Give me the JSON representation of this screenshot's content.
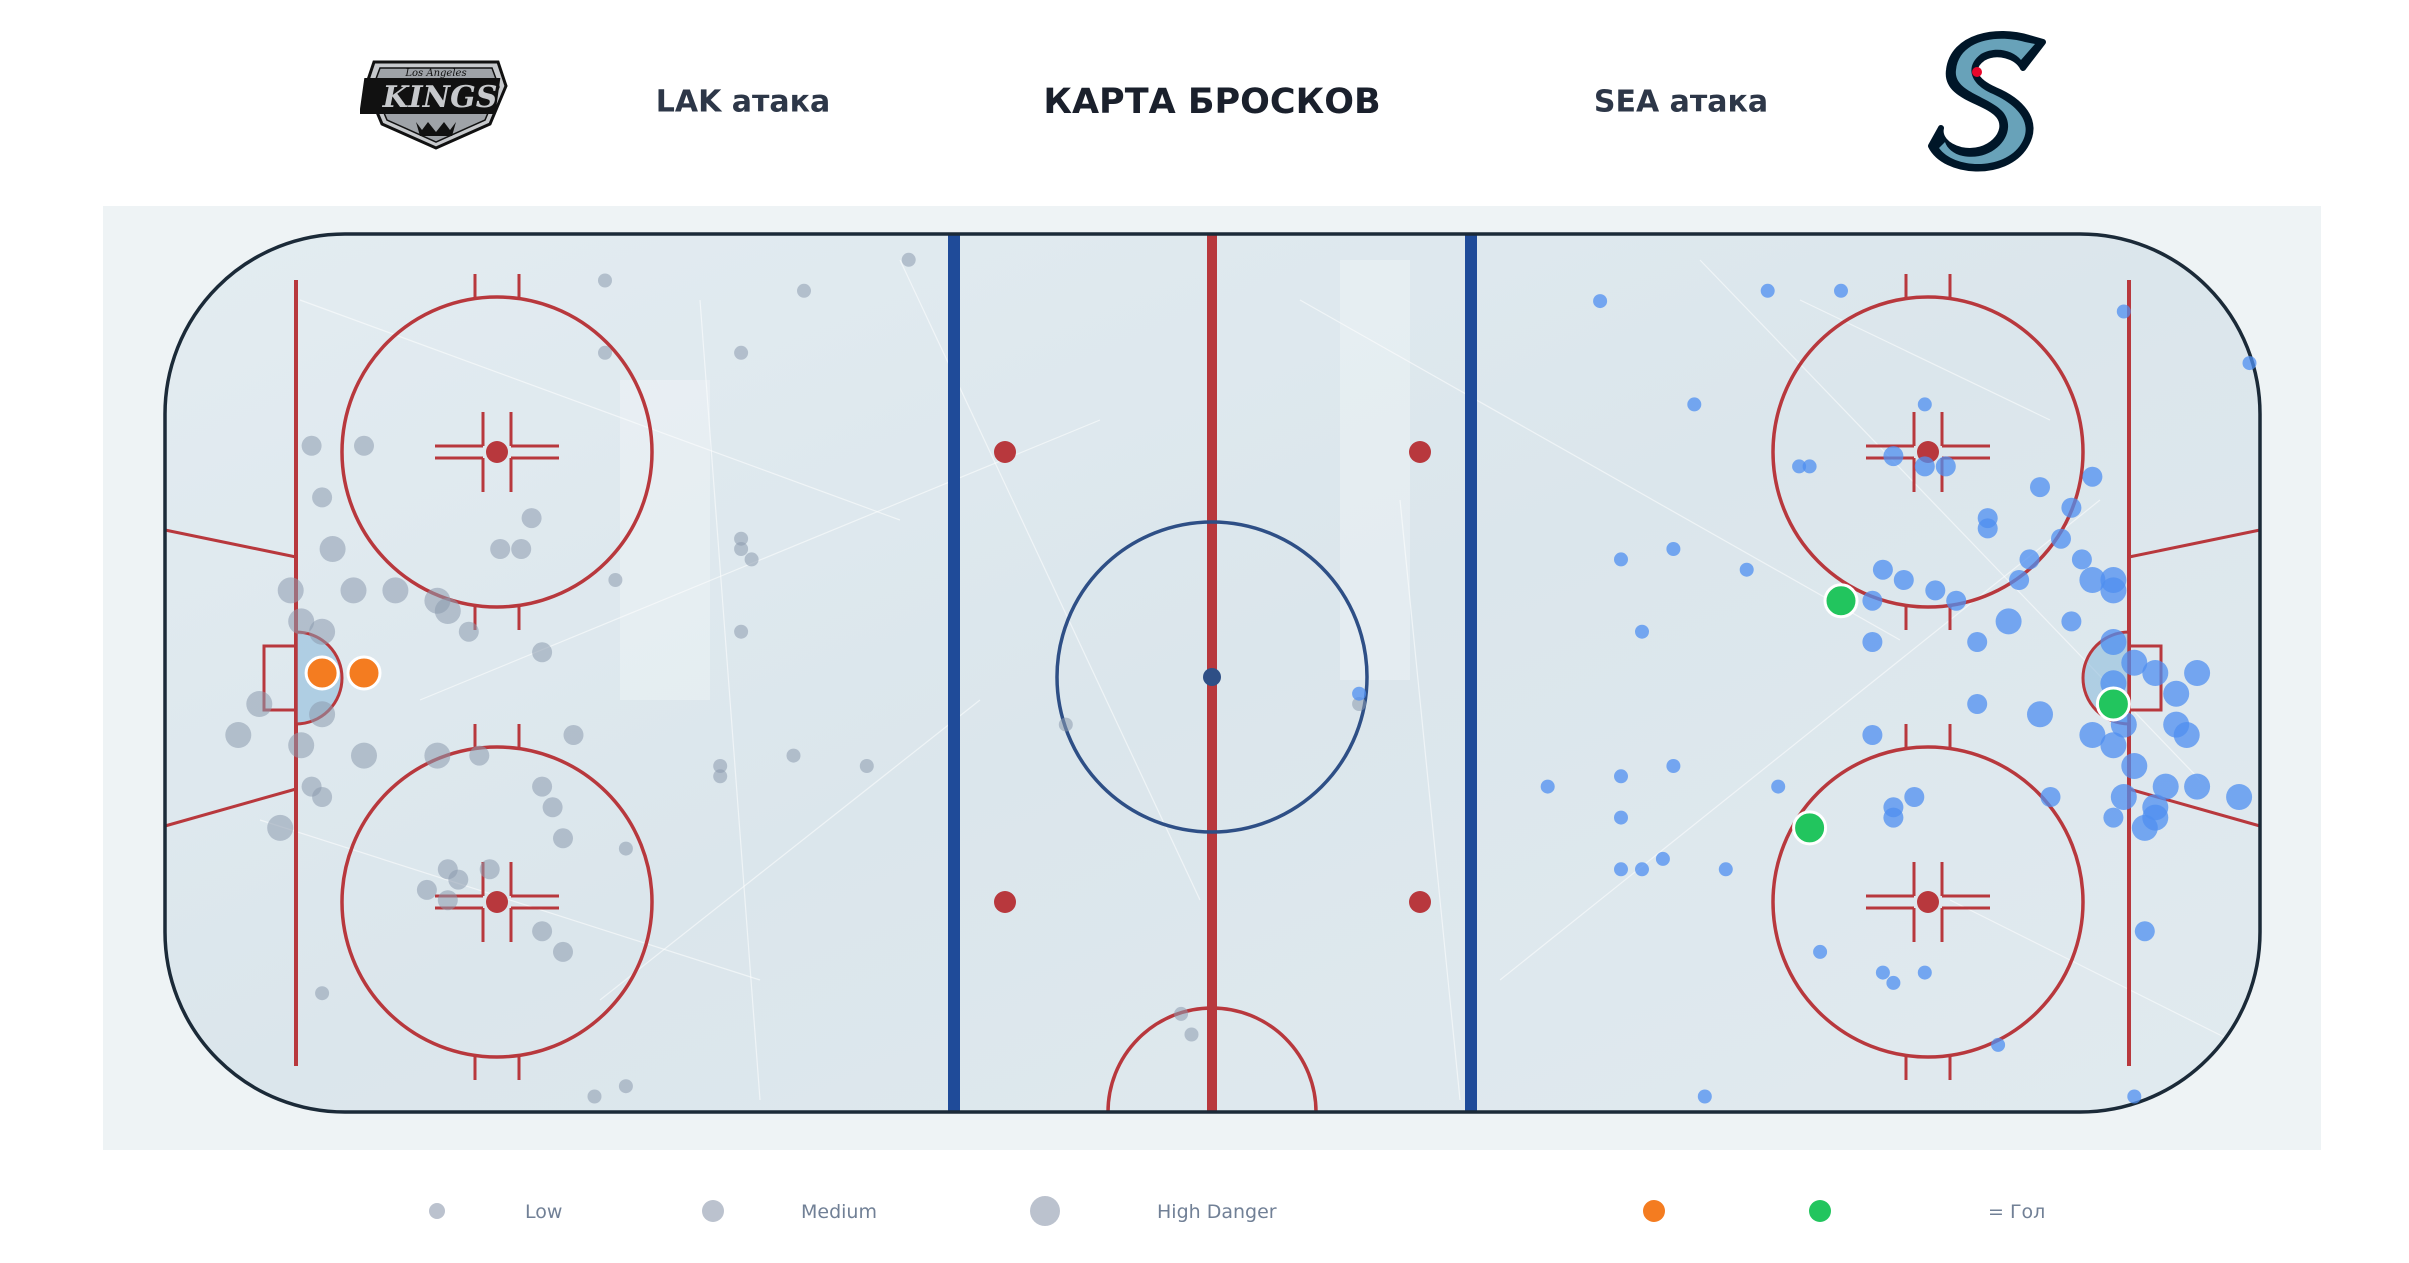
{
  "header": {
    "title": "КАРТА БРОСКОВ",
    "left_team_label": "LAK атака",
    "right_team_label": "SEA атака"
  },
  "logos": {
    "left": {
      "name": "la-kings-logo",
      "top_text": "Los Angeles",
      "main_text": "KINGS"
    },
    "right": {
      "name": "seattle-kraken-logo",
      "letter": "S"
    }
  },
  "legend": {
    "low": "Low",
    "medium": "Medium",
    "high": "High Danger",
    "goal": "= Гол"
  },
  "colors": {
    "lak_shot": "#8d9aae",
    "sea_shot": "#4f8ff0",
    "lak_goal": "#f47c20",
    "sea_goal": "#22c55e",
    "red_line": "#b8383d",
    "blue_line": "#1f4b99",
    "ice": "#dde8ee",
    "board": "#1b2a38"
  },
  "chart_data": {
    "type": "scatter",
    "title": "КАРТА БРОСКОВ",
    "xlabel": "",
    "ylabel": "",
    "xlim": [
      -100,
      100
    ],
    "ylim": [
      -42.5,
      42.5
    ],
    "grid": false,
    "legend_placement": "bottom",
    "danger_levels": [
      "Low",
      "Medium",
      "High Danger"
    ],
    "series": [
      {
        "team": "LAK",
        "kind": "shots",
        "points": [
          {
            "x": -58,
            "y": 38,
            "d": "low"
          },
          {
            "x": -39,
            "y": 37,
            "d": "low"
          },
          {
            "x": -29,
            "y": 40,
            "d": "low"
          },
          {
            "x": -58,
            "y": 31,
            "d": "low"
          },
          {
            "x": -45,
            "y": 31,
            "d": "low"
          },
          {
            "x": -86,
            "y": 22,
            "d": "medium"
          },
          {
            "x": -81,
            "y": 22,
            "d": "medium"
          },
          {
            "x": -85,
            "y": 17,
            "d": "medium"
          },
          {
            "x": -65,
            "y": 15,
            "d": "medium"
          },
          {
            "x": -84,
            "y": 12,
            "d": "high"
          },
          {
            "x": -68,
            "y": 12,
            "d": "medium"
          },
          {
            "x": -66,
            "y": 12,
            "d": "medium"
          },
          {
            "x": -57,
            "y": 9,
            "d": "low"
          },
          {
            "x": -45,
            "y": 12,
            "d": "low"
          },
          {
            "x": -45,
            "y": 13,
            "d": "low"
          },
          {
            "x": -44,
            "y": 11,
            "d": "low"
          },
          {
            "x": -88,
            "y": 8,
            "d": "high"
          },
          {
            "x": -82,
            "y": 8,
            "d": "high"
          },
          {
            "x": -78,
            "y": 8,
            "d": "high"
          },
          {
            "x": -74,
            "y": 7,
            "d": "high"
          },
          {
            "x": -73,
            "y": 6,
            "d": "high"
          },
          {
            "x": -87,
            "y": 5,
            "d": "high"
          },
          {
            "x": -85,
            "y": 4,
            "d": "high"
          },
          {
            "x": -71,
            "y": 4,
            "d": "medium"
          },
          {
            "x": -64,
            "y": 2,
            "d": "medium"
          },
          {
            "x": -45,
            "y": 4,
            "d": "low"
          },
          {
            "x": -91,
            "y": -3,
            "d": "high"
          },
          {
            "x": -85,
            "y": -4,
            "d": "high"
          },
          {
            "x": -93,
            "y": -6,
            "d": "high"
          },
          {
            "x": -87,
            "y": -7,
            "d": "high"
          },
          {
            "x": -81,
            "y": -8,
            "d": "high"
          },
          {
            "x": -74,
            "y": -8,
            "d": "high"
          },
          {
            "x": -70,
            "y": -8,
            "d": "medium"
          },
          {
            "x": -61,
            "y": -6,
            "d": "medium"
          },
          {
            "x": -47,
            "y": -9,
            "d": "low"
          },
          {
            "x": -40,
            "y": -8,
            "d": "low"
          },
          {
            "x": -33,
            "y": -9,
            "d": "low"
          },
          {
            "x": -86,
            "y": -11,
            "d": "medium"
          },
          {
            "x": -85,
            "y": -12,
            "d": "medium"
          },
          {
            "x": -64,
            "y": -11,
            "d": "medium"
          },
          {
            "x": -63,
            "y": -13,
            "d": "medium"
          },
          {
            "x": -47,
            "y": -10,
            "d": "low"
          },
          {
            "x": -89,
            "y": -15,
            "d": "high"
          },
          {
            "x": -62,
            "y": -16,
            "d": "medium"
          },
          {
            "x": -56,
            "y": -17,
            "d": "low"
          },
          {
            "x": -73,
            "y": -19,
            "d": "medium"
          },
          {
            "x": -75,
            "y": -21,
            "d": "medium"
          },
          {
            "x": -73,
            "y": -22,
            "d": "medium"
          },
          {
            "x": -72,
            "y": -20,
            "d": "medium"
          },
          {
            "x": -69,
            "y": -19,
            "d": "medium"
          },
          {
            "x": -64,
            "y": -25,
            "d": "medium"
          },
          {
            "x": -62,
            "y": -27,
            "d": "medium"
          },
          {
            "x": -56,
            "y": -40,
            "d": "low"
          },
          {
            "x": -59,
            "y": -41,
            "d": "low"
          },
          {
            "x": -85,
            "y": -31,
            "d": "low"
          },
          {
            "x": -3,
            "y": -33,
            "d": "low"
          },
          {
            "x": -2,
            "y": -35,
            "d": "low"
          },
          {
            "x": -14,
            "y": -5,
            "d": "low"
          },
          {
            "x": 14,
            "y": -3,
            "d": "low"
          }
        ]
      },
      {
        "team": "SEA",
        "kind": "shots",
        "points": [
          {
            "x": 37,
            "y": 36,
            "d": "low"
          },
          {
            "x": 53,
            "y": 37,
            "d": "low"
          },
          {
            "x": 60,
            "y": 37,
            "d": "low"
          },
          {
            "x": 87,
            "y": 35,
            "d": "low"
          },
          {
            "x": 99,
            "y": 30,
            "d": "low"
          },
          {
            "x": 46,
            "y": 26,
            "d": "low"
          },
          {
            "x": 68,
            "y": 26,
            "d": "low"
          },
          {
            "x": 56,
            "y": 20,
            "d": "low"
          },
          {
            "x": 57,
            "y": 20,
            "d": "low"
          },
          {
            "x": 65,
            "y": 21,
            "d": "medium"
          },
          {
            "x": 70,
            "y": 20,
            "d": "medium"
          },
          {
            "x": 68,
            "y": 20,
            "d": "medium"
          },
          {
            "x": 79,
            "y": 18,
            "d": "medium"
          },
          {
            "x": 82,
            "y": 16,
            "d": "medium"
          },
          {
            "x": 84,
            "y": 19,
            "d": "medium"
          },
          {
            "x": 81,
            "y": 13,
            "d": "medium"
          },
          {
            "x": 74,
            "y": 15,
            "d": "medium"
          },
          {
            "x": 74,
            "y": 14,
            "d": "medium"
          },
          {
            "x": 39,
            "y": 11,
            "d": "low"
          },
          {
            "x": 44,
            "y": 12,
            "d": "low"
          },
          {
            "x": 51,
            "y": 10,
            "d": "low"
          },
          {
            "x": 64,
            "y": 10,
            "d": "medium"
          },
          {
            "x": 66,
            "y": 9,
            "d": "medium"
          },
          {
            "x": 78,
            "y": 11,
            "d": "medium"
          },
          {
            "x": 83,
            "y": 11,
            "d": "medium"
          },
          {
            "x": 86,
            "y": 9,
            "d": "high"
          },
          {
            "x": 63,
            "y": 7,
            "d": "medium"
          },
          {
            "x": 71,
            "y": 7,
            "d": "medium"
          },
          {
            "x": 77,
            "y": 9,
            "d": "medium"
          },
          {
            "x": 84,
            "y": 9,
            "d": "high"
          },
          {
            "x": 86,
            "y": 8,
            "d": "high"
          },
          {
            "x": 41,
            "y": 4,
            "d": "low"
          },
          {
            "x": 69,
            "y": 8,
            "d": "medium"
          },
          {
            "x": 82,
            "y": 5,
            "d": "medium"
          },
          {
            "x": 63,
            "y": 3,
            "d": "medium"
          },
          {
            "x": 73,
            "y": 3,
            "d": "medium"
          },
          {
            "x": 76,
            "y": 5,
            "d": "high"
          },
          {
            "x": 86,
            "y": 3,
            "d": "high"
          },
          {
            "x": 88,
            "y": 1,
            "d": "high"
          },
          {
            "x": 90,
            "y": 0,
            "d": "high"
          },
          {
            "x": 86,
            "y": -1,
            "d": "high"
          },
          {
            "x": 92,
            "y": -2,
            "d": "high"
          },
          {
            "x": 94,
            "y": 0,
            "d": "high"
          },
          {
            "x": 73,
            "y": -3,
            "d": "medium"
          },
          {
            "x": 79,
            "y": -4,
            "d": "high"
          },
          {
            "x": 87,
            "y": -5,
            "d": "high"
          },
          {
            "x": 92,
            "y": -5,
            "d": "high"
          },
          {
            "x": 93,
            "y": -6,
            "d": "high"
          },
          {
            "x": 63,
            "y": -6,
            "d": "medium"
          },
          {
            "x": 84,
            "y": -6,
            "d": "high"
          },
          {
            "x": 86,
            "y": -7,
            "d": "high"
          },
          {
            "x": 88,
            "y": -9,
            "d": "high"
          },
          {
            "x": 91,
            "y": -11,
            "d": "high"
          },
          {
            "x": 94,
            "y": -11,
            "d": "high"
          },
          {
            "x": 98,
            "y": -12,
            "d": "high"
          },
          {
            "x": 87,
            "y": -12,
            "d": "high"
          },
          {
            "x": 90,
            "y": -13,
            "d": "high"
          },
          {
            "x": 65,
            "y": -13,
            "d": "medium"
          },
          {
            "x": 67,
            "y": -12,
            "d": "medium"
          },
          {
            "x": 86,
            "y": -14,
            "d": "medium"
          },
          {
            "x": 90,
            "y": -14,
            "d": "high"
          },
          {
            "x": 89,
            "y": -15,
            "d": "high"
          },
          {
            "x": 80,
            "y": -12,
            "d": "medium"
          },
          {
            "x": 54,
            "y": -11,
            "d": "low"
          },
          {
            "x": 32,
            "y": -11,
            "d": "low"
          },
          {
            "x": 39,
            "y": -14,
            "d": "low"
          },
          {
            "x": 39,
            "y": -10,
            "d": "low"
          },
          {
            "x": 44,
            "y": -9,
            "d": "low"
          },
          {
            "x": 39,
            "y": -19,
            "d": "low"
          },
          {
            "x": 41,
            "y": -19,
            "d": "low"
          },
          {
            "x": 43,
            "y": -18,
            "d": "low"
          },
          {
            "x": 49,
            "y": -19,
            "d": "low"
          },
          {
            "x": 65,
            "y": -14,
            "d": "medium"
          },
          {
            "x": 58,
            "y": -27,
            "d": "low"
          },
          {
            "x": 64,
            "y": -29,
            "d": "low"
          },
          {
            "x": 65,
            "y": -30,
            "d": "low"
          },
          {
            "x": 68,
            "y": -29,
            "d": "low"
          },
          {
            "x": 75,
            "y": -36,
            "d": "low"
          },
          {
            "x": 47,
            "y": -41,
            "d": "low"
          },
          {
            "x": 88,
            "y": -41,
            "d": "low"
          },
          {
            "x": 89,
            "y": -25,
            "d": "medium"
          },
          {
            "x": 14,
            "y": -2,
            "d": "low"
          }
        ]
      },
      {
        "team": "LAK",
        "kind": "goals",
        "points": [
          {
            "x": -85,
            "y": 0
          },
          {
            "x": -81,
            "y": 0
          }
        ]
      },
      {
        "team": "SEA",
        "kind": "goals",
        "points": [
          {
            "x": 60,
            "y": 7
          },
          {
            "x": 86,
            "y": -3
          },
          {
            "x": 57,
            "y": -15
          }
        ]
      }
    ]
  }
}
